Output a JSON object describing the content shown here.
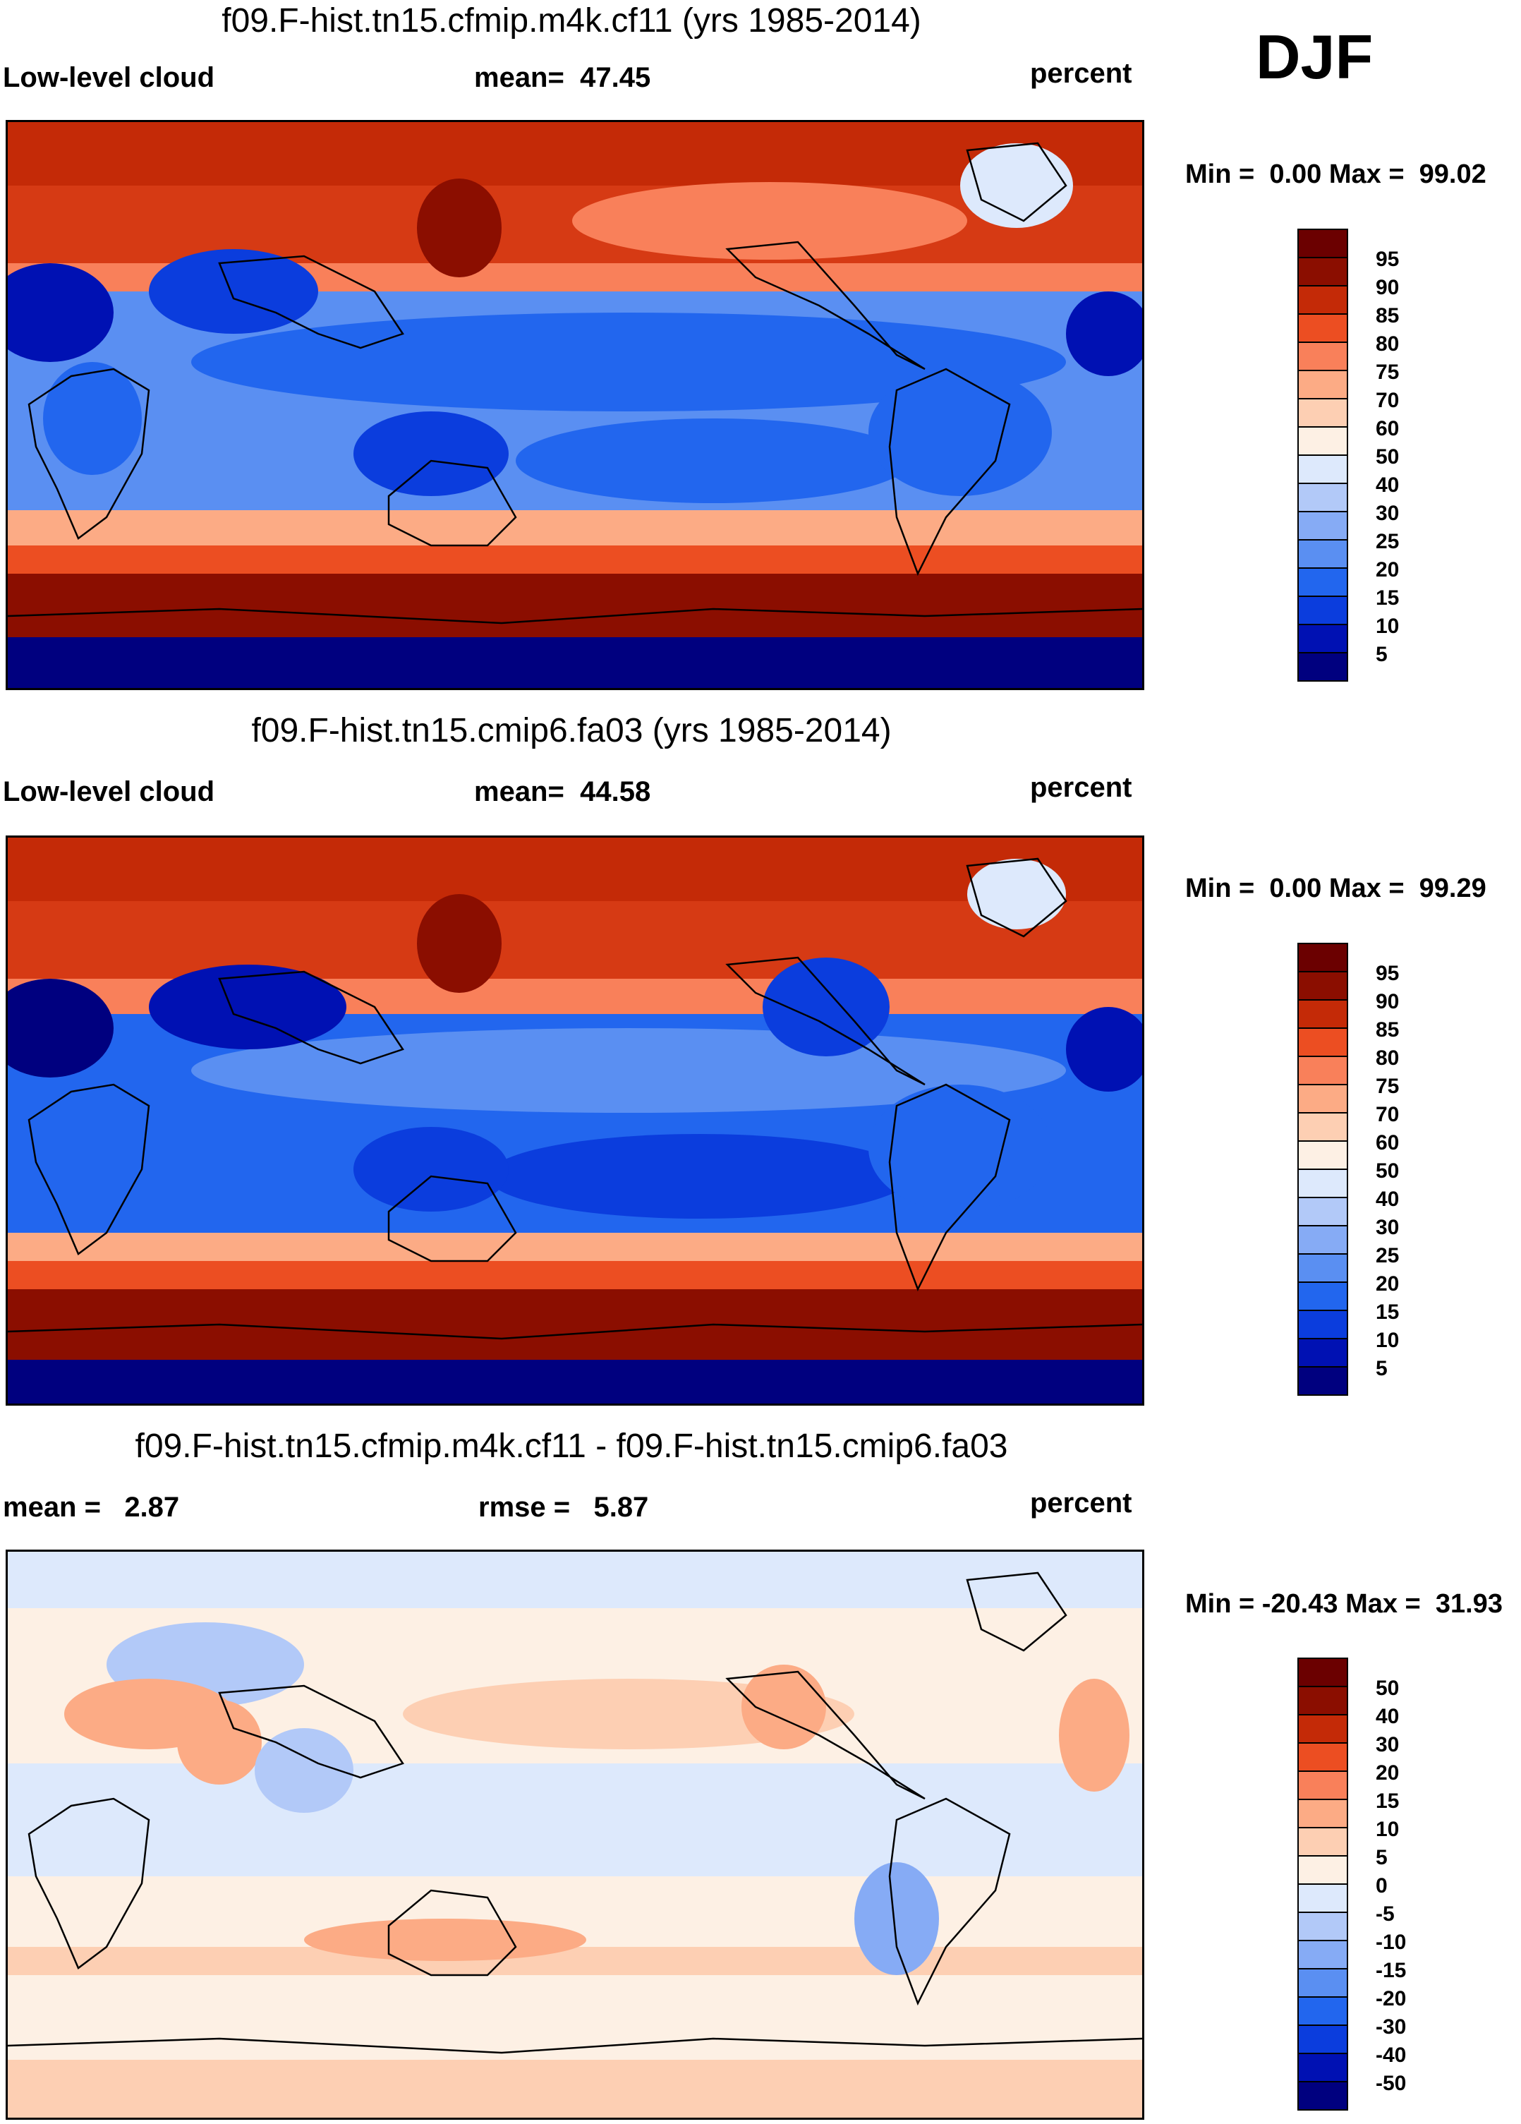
{
  "season": "DJF",
  "units_label": "percent",
  "panels": [
    {
      "title": "f09.F-hist.tn15.cfmip.m4k.cf11 (yrs 1985-2014)",
      "variable": "Low-level cloud",
      "stat1_label": "mean=",
      "stat1_value": "47.45",
      "min_label": "Min =",
      "min_value": "0.00",
      "max_label": "Max =",
      "max_value": "99.02"
    },
    {
      "title": "f09.F-hist.tn15.cmip6.fa03 (yrs 1985-2014)",
      "variable": "Low-level cloud",
      "stat1_label": "mean=",
      "stat1_value": "44.58",
      "min_label": "Min =",
      "min_value": "0.00",
      "max_label": "Max =",
      "max_value": "99.29"
    },
    {
      "title": "f09.F-hist.tn15.cfmip.m4k.cf11 - f09.F-hist.tn15.cmip6.fa03",
      "stat1_label": "mean =",
      "stat1_value": "2.87",
      "stat2_label": "rmse =",
      "stat2_value": "5.87",
      "min_label": "Min =",
      "min_value": "-20.43",
      "max_label": "Max =",
      "max_value": "31.93"
    }
  ],
  "chart_data": [
    {
      "type": "heatmap",
      "title": "f09.F-hist.tn15.cfmip.m4k.cf11 (yrs 1985-2014)",
      "variable": "Low-level cloud",
      "units": "percent",
      "mean": 47.45,
      "min": 0.0,
      "max": 99.02,
      "colorbar_levels": [
        5,
        10,
        15,
        20,
        25,
        30,
        40,
        50,
        60,
        70,
        75,
        80,
        85,
        90,
        95
      ],
      "colorbar_colors": [
        "#00007f",
        "#0011b3",
        "#0b3ddd",
        "#2266ee",
        "#5a8ff2",
        "#86abf5",
        "#b2c9f8",
        "#dde9fc",
        "#fdf0e4",
        "#fdcfb3",
        "#fcab85",
        "#f9805a",
        "#ec4e22",
        "#c42a07",
        "#8b0e00",
        "#6b0000"
      ]
    },
    {
      "type": "heatmap",
      "title": "f09.F-hist.tn15.cmip6.fa03 (yrs 1985-2014)",
      "variable": "Low-level cloud",
      "units": "percent",
      "mean": 44.58,
      "min": 0.0,
      "max": 99.29,
      "colorbar_levels": [
        5,
        10,
        15,
        20,
        25,
        30,
        40,
        50,
        60,
        70,
        75,
        80,
        85,
        90,
        95
      ],
      "colorbar_colors": [
        "#00007f",
        "#0011b3",
        "#0b3ddd",
        "#2266ee",
        "#5a8ff2",
        "#86abf5",
        "#b2c9f8",
        "#dde9fc",
        "#fdf0e4",
        "#fdcfb3",
        "#fcab85",
        "#f9805a",
        "#ec4e22",
        "#c42a07",
        "#8b0e00",
        "#6b0000"
      ]
    },
    {
      "type": "heatmap",
      "title": "f09.F-hist.tn15.cfmip.m4k.cf11 - f09.F-hist.tn15.cmip6.fa03",
      "units": "percent",
      "mean": 2.87,
      "rmse": 5.87,
      "min": -20.43,
      "max": 31.93,
      "colorbar_levels": [
        -50,
        -40,
        -30,
        -20,
        -15,
        -10,
        -5,
        0,
        5,
        10,
        15,
        20,
        30,
        40,
        50
      ],
      "colorbar_colors": [
        "#00007f",
        "#0011b3",
        "#0b3ddd",
        "#2266ee",
        "#5a8ff2",
        "#86abf5",
        "#b2c9f8",
        "#dde9fc",
        "#fdf0e4",
        "#fdcfb3",
        "#fcab85",
        "#f9805a",
        "#ec4e22",
        "#c42a07",
        "#8b0e00",
        "#6b0000"
      ]
    }
  ]
}
